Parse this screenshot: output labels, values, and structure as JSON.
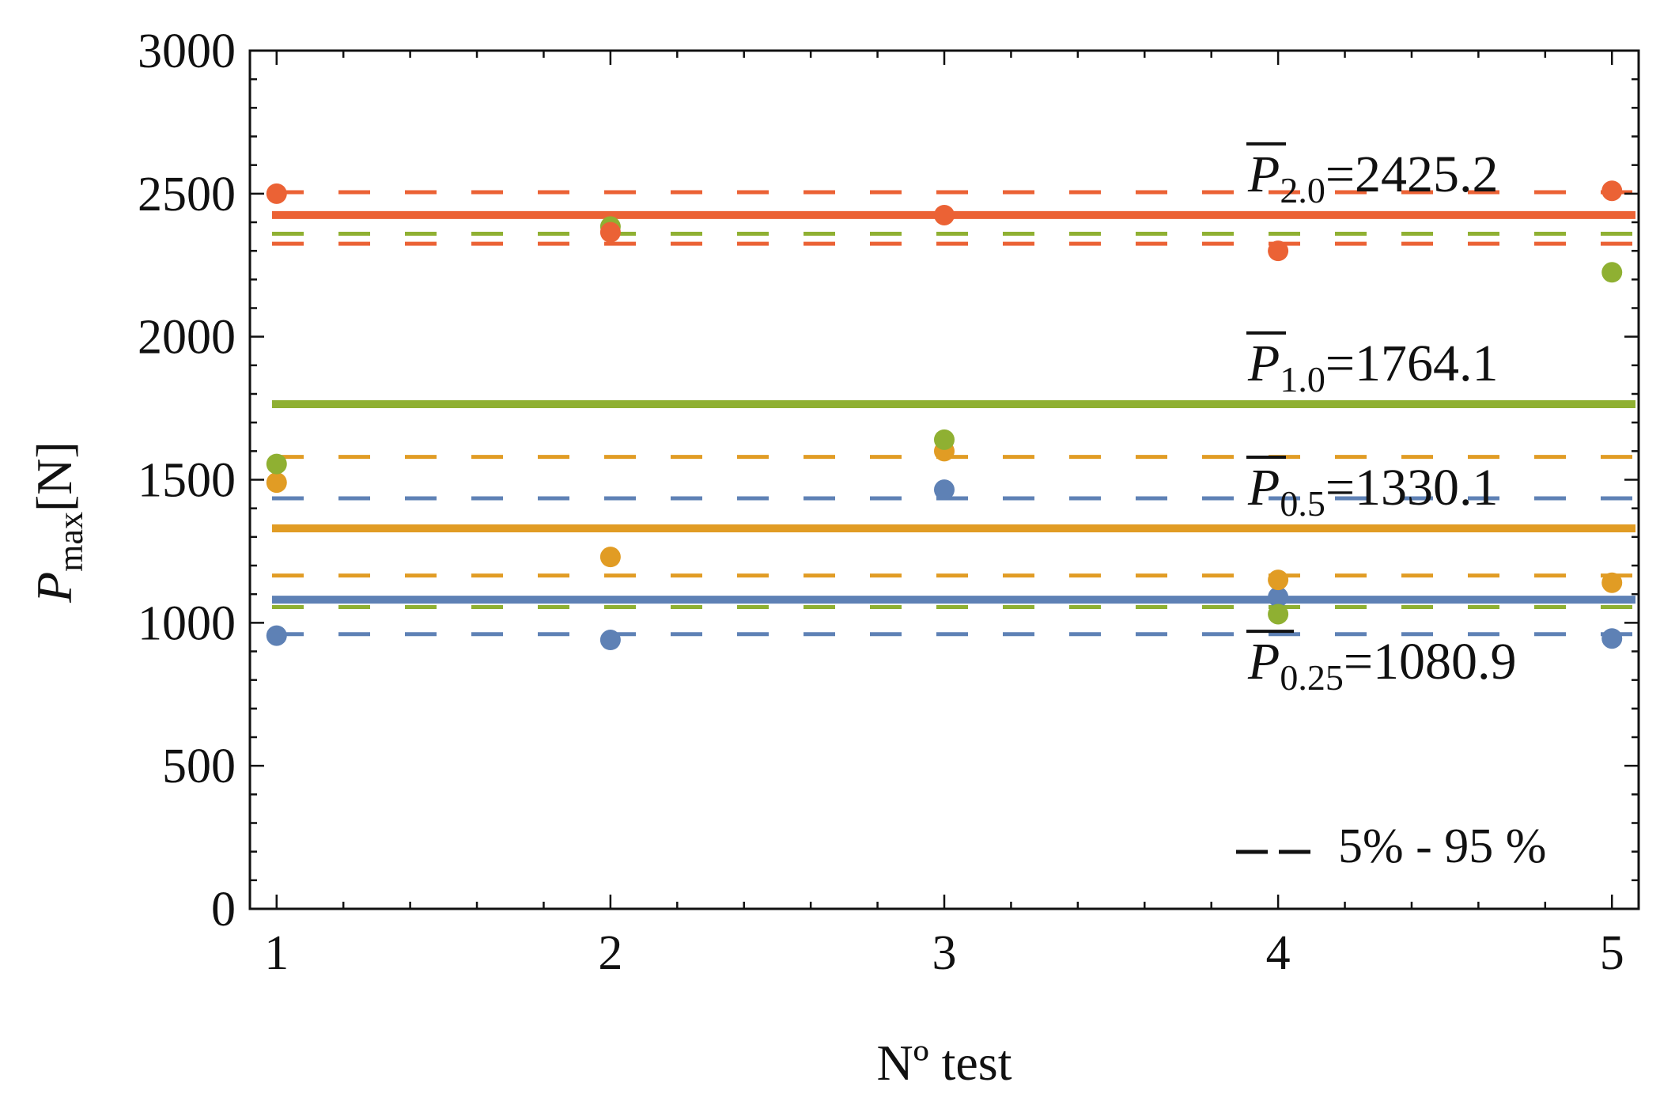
{
  "chart_data": {
    "type": "scatter",
    "xlabel": "Nº test",
    "ylabel_main": "P",
    "ylabel_sub": "max",
    "ylabel_unit": "[N]",
    "xlim": [
      0.92,
      5.08
    ],
    "ylim": [
      0,
      3000
    ],
    "x_ticks": [
      1,
      2,
      3,
      4,
      5
    ],
    "x_tick_labels": [
      "1",
      "2",
      "3",
      "4",
      "5"
    ],
    "y_ticks": [
      0,
      500,
      1000,
      1500,
      2000,
      2500,
      3000
    ],
    "y_tick_labels": [
      "0",
      "500",
      "1000",
      "1500",
      "2000",
      "2500",
      "3000"
    ],
    "x": [
      1,
      2,
      3,
      4,
      5
    ],
    "series": [
      {
        "name": "P_0.25",
        "sub": "0.25",
        "mean": 1080.9,
        "mean_label": "=1080.9",
        "p5": 960,
        "p95": 1435,
        "values": [
          955,
          940,
          1465,
          1090,
          945
        ],
        "color": "#5e81b5"
      },
      {
        "name": "P_0.5",
        "sub": "0.5",
        "mean": 1330.1,
        "mean_label": "=1330.1",
        "p5": 1165,
        "p95": 1580,
        "values": [
          1490,
          1230,
          1600,
          1150,
          1140
        ],
        "color": "#e19c24"
      },
      {
        "name": "P_1.0",
        "sub": "1.0",
        "mean": 1764.1,
        "mean_label": "=1764.1",
        "p5": 1055,
        "p95": 2360,
        "values": [
          1555,
          2385,
          1640,
          1030,
          2225
        ],
        "color": "#8fb032"
      },
      {
        "name": "P_2.0",
        "sub": "2.0",
        "mean": 2425.2,
        "mean_label": "=2425.2",
        "p5": 2325,
        "p95": 2505,
        "values": [
          2500,
          2365,
          2425,
          2300,
          2510
        ],
        "color": "#eb6235"
      }
    ],
    "legend_text": "5% - 95 %",
    "legend_position": "bottom-right"
  }
}
